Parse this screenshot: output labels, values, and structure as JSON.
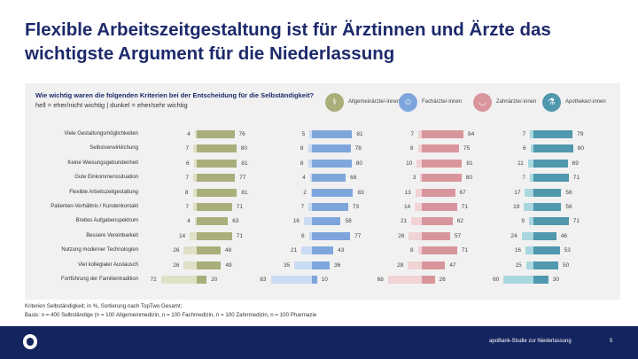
{
  "title": "Flexible Arbeitszeitgestaltung ist für Ärztinnen und Ärzte das wichtigste Argument für die Niederlassung",
  "chart_data": {
    "type": "bar",
    "title": "Wie wichtig waren die folgenden Kriterien bei der Entscheidung für die Selbständigkeit?",
    "subtitle": "hell = eher/nicht wichtig | dunkel = eher/sehr wichtig",
    "categories": [
      "Viele Gestaltungsmöglichkeiten",
      "Selbstverwirklichung",
      "Keine Weisungsgebundenheit",
      "Gute Einkommenssituation",
      "Flexible Arbeitszeitgestaltung",
      "Patienten-Verhältnis / Kundenkontakt",
      "Breites Aufgabenspektrum",
      "Bessere Vereinbarkeit",
      "Nutzung moderner Technologien",
      "Viel kollegialer Austausch",
      "Fortführung der Familientradition"
    ],
    "groups": [
      {
        "name": "Allgemeinärzte/-innen",
        "icon": "doctor-icon",
        "dark_color": "#a9ae7a",
        "light_color": "#dfe0c6",
        "light": [
          4,
          7,
          6,
          7,
          8,
          7,
          4,
          14,
          26,
          26,
          72
        ],
        "dark": [
          76,
          80,
          81,
          77,
          81,
          71,
          63,
          71,
          48,
          49,
          20
        ]
      },
      {
        "name": "Fachärzte/-innen",
        "icon": "specialist-icon",
        "dark_color": "#7ea6dc",
        "light_color": "#c9dcf3",
        "light": [
          5,
          8,
          8,
          4,
          2,
          7,
          16,
          6,
          21,
          35,
          83
        ],
        "dark": [
          81,
          78,
          80,
          68,
          83,
          73,
          58,
          77,
          43,
          36,
          10
        ]
      },
      {
        "name": "Zahnärzte/-innen",
        "icon": "tooth-icon",
        "dark_color": "#d9959c",
        "light_color": "#f1d3d5",
        "light": [
          7,
          8,
          10,
          3,
          13,
          14,
          21,
          26,
          8,
          28,
          68
        ],
        "dark": [
          84,
          75,
          81,
          80,
          67,
          71,
          62,
          57,
          71,
          47,
          26
        ]
      },
      {
        "name": "Apotheker/-innen",
        "icon": "mortar-icon",
        "dark_color": "#4f98ad",
        "light_color": "#a9d7df",
        "light": [
          7,
          6,
          11,
          7,
          17,
          19,
          9,
          24,
          16,
          15,
          60
        ],
        "dark": [
          79,
          80,
          69,
          71,
          56,
          56,
          71,
          46,
          53,
          50,
          30
        ]
      }
    ]
  },
  "footnote": {
    "line1": "Kriterien Selbständigkeit; in %, Sortierung nach TopTwo Gesamt;",
    "line2": "Basis: n = 400 Selbständige (n = 100 Allgemeinmedizin, n = 100 Fachmedizin, n = 100 Zahnmedizin, n = 100 Pharmazie"
  },
  "footer": {
    "study": "apoBank-Studie zur Niederlassung",
    "page": "5",
    "logo_text": "a"
  }
}
